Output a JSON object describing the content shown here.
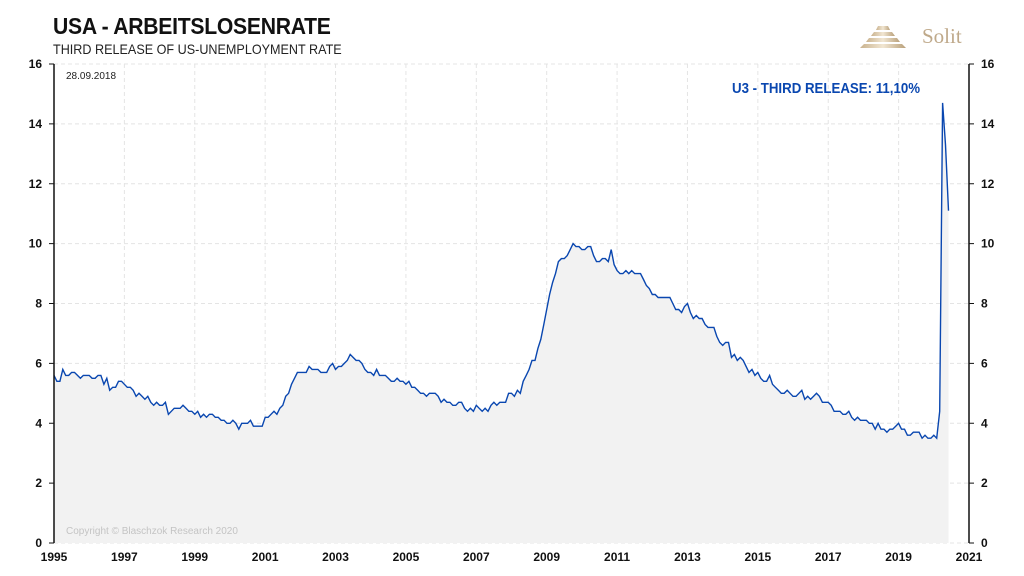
{
  "header": {
    "title": "USA - ARBEITSLOSENRATE",
    "subtitle": "THIRD RELEASE OF US-UNEMPLOYMENT RATE"
  },
  "logo": {
    "text": "Solit",
    "color": "#bfa98a"
  },
  "chart_data": {
    "type": "area",
    "date_note": "28.09.2018",
    "annotation": "U3 - THIRD RELEASE: 11,10%",
    "copyright": "Copyright © Blaschzok Research 2020",
    "xlim": [
      1995,
      2021
    ],
    "ylim": [
      0,
      16
    ],
    "x_ticks": [
      "1995",
      "1997",
      "1999",
      "2001",
      "2003",
      "2005",
      "2007",
      "2009",
      "2011",
      "2013",
      "2015",
      "2017",
      "2019",
      "2021"
    ],
    "y_ticks": [
      "0",
      "2",
      "4",
      "6",
      "8",
      "10",
      "12",
      "14",
      "16"
    ],
    "grid": true,
    "line_color": "#0a47b0",
    "fill_color": "#f2f2f2",
    "series": [
      {
        "start": "1995-01",
        "frequency": "monthly",
        "values": [
          5.6,
          5.4,
          5.4,
          5.8,
          5.6,
          5.6,
          5.7,
          5.7,
          5.6,
          5.5,
          5.6,
          5.6,
          5.6,
          5.5,
          5.5,
          5.6,
          5.6,
          5.3,
          5.5,
          5.1,
          5.2,
          5.2,
          5.4,
          5.4,
          5.3,
          5.2,
          5.2,
          5.1,
          4.9,
          5.0,
          4.9,
          4.8,
          4.9,
          4.7,
          4.6,
          4.7,
          4.6,
          4.6,
          4.7,
          4.3,
          4.4,
          4.5,
          4.5,
          4.5,
          4.6,
          4.5,
          4.4,
          4.4,
          4.3,
          4.4,
          4.2,
          4.3,
          4.2,
          4.3,
          4.3,
          4.2,
          4.2,
          4.1,
          4.1,
          4.0,
          4.0,
          4.1,
          4.0,
          3.8,
          4.0,
          4.0,
          4.0,
          4.1,
          3.9,
          3.9,
          3.9,
          3.9,
          4.2,
          4.2,
          4.3,
          4.4,
          4.3,
          4.5,
          4.6,
          4.9,
          5.0,
          5.3,
          5.5,
          5.7,
          5.7,
          5.7,
          5.7,
          5.9,
          5.8,
          5.8,
          5.8,
          5.7,
          5.7,
          5.7,
          5.9,
          6.0,
          5.8,
          5.9,
          5.9,
          6.0,
          6.1,
          6.3,
          6.2,
          6.1,
          6.1,
          6.0,
          5.8,
          5.7,
          5.7,
          5.6,
          5.8,
          5.6,
          5.6,
          5.6,
          5.5,
          5.4,
          5.4,
          5.5,
          5.4,
          5.4,
          5.3,
          5.4,
          5.2,
          5.2,
          5.1,
          5.0,
          5.0,
          4.9,
          5.0,
          5.0,
          5.0,
          4.9,
          4.7,
          4.8,
          4.7,
          4.7,
          4.6,
          4.6,
          4.7,
          4.7,
          4.5,
          4.4,
          4.5,
          4.4,
          4.6,
          4.5,
          4.4,
          4.5,
          4.4,
          4.6,
          4.7,
          4.6,
          4.7,
          4.7,
          4.7,
          5.0,
          5.0,
          4.9,
          5.1,
          5.0,
          5.4,
          5.6,
          5.8,
          6.1,
          6.1,
          6.5,
          6.8,
          7.3,
          7.8,
          8.3,
          8.7,
          9.0,
          9.4,
          9.5,
          9.5,
          9.6,
          9.8,
          10.0,
          9.9,
          9.9,
          9.8,
          9.8,
          9.9,
          9.9,
          9.6,
          9.4,
          9.4,
          9.5,
          9.5,
          9.4,
          9.8,
          9.3,
          9.1,
          9.0,
          9.0,
          9.1,
          9.0,
          9.1,
          9.0,
          9.0,
          9.0,
          8.8,
          8.6,
          8.5,
          8.3,
          8.3,
          8.2,
          8.2,
          8.2,
          8.2,
          8.2,
          8.0,
          7.8,
          7.8,
          7.7,
          7.9,
          8.0,
          7.7,
          7.5,
          7.6,
          7.5,
          7.5,
          7.3,
          7.2,
          7.2,
          7.2,
          6.9,
          6.7,
          6.6,
          6.7,
          6.7,
          6.2,
          6.3,
          6.1,
          6.2,
          6.1,
          5.9,
          5.7,
          5.8,
          5.6,
          5.7,
          5.5,
          5.4,
          5.4,
          5.6,
          5.3,
          5.2,
          5.1,
          5.0,
          5.0,
          5.1,
          5.0,
          4.9,
          4.9,
          5.0,
          5.1,
          4.8,
          4.9,
          4.8,
          4.9,
          5.0,
          4.9,
          4.7,
          4.7,
          4.7,
          4.6,
          4.4,
          4.4,
          4.4,
          4.3,
          4.3,
          4.4,
          4.2,
          4.1,
          4.2,
          4.1,
          4.1,
          4.1,
          4.0,
          4.0,
          3.8,
          4.0,
          3.8,
          3.8,
          3.7,
          3.8,
          3.8,
          3.9,
          4.0,
          3.8,
          3.8,
          3.6,
          3.6,
          3.7,
          3.7,
          3.7,
          3.5,
          3.6,
          3.5,
          3.5,
          3.6,
          3.5,
          4.4,
          14.7,
          13.3,
          11.1
        ]
      }
    ]
  }
}
